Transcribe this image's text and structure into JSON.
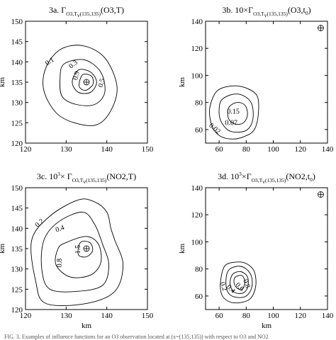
{
  "caption_fragment": "FIG. 3. Examples of influence functions for an O3 observation located at (x=(135,135)) with respect to O3 and NO2",
  "chart_data": [
    {
      "type": "contour",
      "title": {
        "pre": "3a. Γ",
        "sub": "O3,T",
        "sub2": "v",
        "sub3": "(135,135)",
        "post": "(O3,T)"
      },
      "xlabel": "",
      "ylabel": "km",
      "xlim": [
        120,
        150
      ],
      "ylim": [
        120,
        150
      ],
      "xticks": [
        120,
        130,
        140,
        150
      ],
      "yticks": [
        120,
        125,
        130,
        135,
        140,
        145,
        150
      ],
      "marker": [
        135,
        135
      ],
      "contours": [
        {
          "level": "0.1",
          "points": [
            [
              128.5,
              143
            ],
            [
              134,
              144
            ],
            [
              139.5,
              141
            ],
            [
              142.5,
              134
            ],
            [
              141,
              128
            ],
            [
              137.5,
              124.5
            ],
            [
              132,
              125
            ],
            [
              127.5,
              127.5
            ],
            [
              124.5,
              133
            ],
            [
              125,
              138.5
            ]
          ]
        },
        {
          "level": "0.3",
          "points": [
            [
              129.5,
              139.5
            ],
            [
              134.5,
              140.5
            ],
            [
              138.5,
              137.5
            ],
            [
              139.5,
              132.5
            ],
            [
              137,
              129.5
            ],
            [
              132.5,
              129.5
            ],
            [
              129,
              131.5
            ],
            [
              128.5,
              136
            ]
          ]
        },
        {
          "level": "0.5",
          "points": [
            [
              133,
              138
            ],
            [
              136,
              137.5
            ],
            [
              137.5,
              135
            ],
            [
              136,
              132.5
            ],
            [
              133,
              132.5
            ],
            [
              131.5,
              135
            ]
          ]
        },
        {
          "level": "0.9",
          "points": [
            [
              134,
              136.8
            ],
            [
              136.2,
              136.5
            ],
            [
              136.6,
              134.5
            ],
            [
              134.8,
              133
            ],
            [
              133.2,
              134
            ]
          ]
        }
      ],
      "labels": [
        {
          "text": "0.1",
          "x": 126,
          "y": 140,
          "rot": -35
        },
        {
          "text": "0.3",
          "x": 131.8,
          "y": 139.3,
          "rot": -40
        },
        {
          "text": "0.9",
          "x": 132.6,
          "y": 136.6,
          "rot": -75
        },
        {
          "text": "0.5",
          "x": 138.8,
          "y": 134.8,
          "rot": -75
        }
      ]
    },
    {
      "type": "contour",
      "title": {
        "pre": "3b. 10×Γ",
        "sub": "O3,T",
        "sub2": "v",
        "sub3": "(135,135)",
        "post": "(O3,t",
        "post_sub": "0",
        "post_end": ")"
      },
      "xlabel": "",
      "ylabel": "km",
      "xlim": [
        50,
        140
      ],
      "ylim": [
        50,
        140
      ],
      "xticks": [
        60,
        80,
        100,
        120,
        140
      ],
      "yticks": [
        60,
        80,
        100,
        120,
        140
      ],
      "marker": [
        135,
        135
      ],
      "contours": [
        {
          "level": "0.02",
          "points": [
            [
              58,
              88
            ],
            [
              68,
              92
            ],
            [
              79,
              91
            ],
            [
              88,
              85
            ],
            [
              89,
              72
            ],
            [
              86,
              60
            ],
            [
              79,
              55
            ],
            [
              70,
              53
            ],
            [
              61,
              55
            ],
            [
              55,
              62
            ],
            [
              53,
              75
            ]
          ]
        },
        {
          "level": "0.07",
          "points": [
            [
              62,
              82
            ],
            [
              70,
              86
            ],
            [
              78,
              85
            ],
            [
              84,
              79
            ],
            [
              85,
              68
            ],
            [
              81,
              60
            ],
            [
              73,
              58
            ],
            [
              66,
              60
            ],
            [
              61,
              67
            ],
            [
              60,
              75
            ]
          ]
        },
        {
          "level": "0.15",
          "points": [
            [
              67,
              76
            ],
            [
              73,
              80
            ],
            [
              79,
              78
            ],
            [
              81,
              71
            ],
            [
              78,
              65
            ],
            [
              72,
              64
            ],
            [
              67,
              68
            ]
          ]
        }
      ],
      "labels": [
        {
          "text": "0.15",
          "x": 70.5,
          "y": 73,
          "rot": 0
        },
        {
          "text": "0.07",
          "x": 69,
          "y": 64.5,
          "rot": 0
        },
        {
          "text": "0.02",
          "x": 56.5,
          "y": 60.5,
          "rot": 40
        }
      ]
    },
    {
      "type": "contour",
      "title": {
        "pre": "3c. 10",
        "sup": "3",
        "mid": "× Γ",
        "sub": "O3,T",
        "sub2": "v",
        "sub3": "(135,135)",
        "post": "(NO2,T)"
      },
      "xlabel": "km",
      "ylabel": "km",
      "xlim": [
        120,
        150
      ],
      "ylim": [
        120,
        150
      ],
      "xticks": [
        120,
        130,
        140,
        150
      ],
      "yticks": [
        120,
        125,
        130,
        135,
        140,
        145,
        150
      ],
      "marker": [
        135,
        135
      ],
      "contours": [
        {
          "level": "0.2",
          "points": [
            [
              126,
              143
            ],
            [
              133,
              147
            ],
            [
              137,
              146.5
            ],
            [
              140,
              144
            ],
            [
              141,
              140
            ],
            [
              142,
              137
            ],
            [
              144,
              131
            ],
            [
              142,
              124.5
            ],
            [
              135,
              121.5
            ],
            [
              125,
              121.5
            ],
            [
              122.5,
              127
            ],
            [
              121.5,
              137
            ]
          ]
        },
        {
          "level": "0.4",
          "points": [
            [
              128,
              141.5
            ],
            [
              134,
              144
            ],
            [
              137,
              141
            ],
            [
              139,
              136
            ],
            [
              140.5,
              131
            ],
            [
              139,
              126
            ],
            [
              133,
              124.5
            ],
            [
              126,
              125
            ],
            [
              124,
              130
            ],
            [
              124.5,
              137
            ]
          ]
        },
        {
          "level": "0.8",
          "points": [
            [
              130,
              136.5
            ],
            [
              135,
              138
            ],
            [
              138,
              136
            ],
            [
              138.5,
              131.5
            ],
            [
              136,
              128.5
            ],
            [
              131,
              128
            ],
            [
              127.5,
              131
            ],
            [
              128,
              135
            ]
          ]
        },
        {
          "level": "1.5",
          "points": [
            [
              133.5,
              136.5
            ],
            [
              135.8,
              136.5
            ],
            [
              136.5,
              134.5
            ],
            [
              135,
              133
            ],
            [
              133,
              133.5
            ]
          ]
        }
      ],
      "labels": [
        {
          "text": "0.2",
          "x": 123.5,
          "y": 141.2,
          "rot": -40
        },
        {
          "text": "0.4",
          "x": 128.5,
          "y": 139.8,
          "rot": -20
        },
        {
          "text": "1.5",
          "x": 133,
          "y": 134.8,
          "rot": -90
        },
        {
          "text": "0.8",
          "x": 128.5,
          "y": 131.5,
          "rot": -90
        }
      ]
    },
    {
      "type": "contour",
      "title": {
        "pre": "3d. 10",
        "sup": "3",
        "mid": "×Γ",
        "sub": "O3,T",
        "sub2": "v",
        "sub3": "(135,135)",
        "post": "(NO2,t",
        "post_sub": "0",
        "post_end": ")"
      },
      "xlabel": "km",
      "ylabel": "km",
      "xlim": [
        50,
        140
      ],
      "ylim": [
        50,
        140
      ],
      "xticks": [
        60,
        80,
        100,
        120,
        140
      ],
      "yticks": [
        60,
        80,
        100,
        120,
        140
      ],
      "marker": [
        135,
        135
      ],
      "contours": [
        {
          "level": "0.2",
          "points": [
            [
              64,
              82
            ],
            [
              72,
              85
            ],
            [
              80,
              84
            ],
            [
              86,
              78
            ],
            [
              87,
              67
            ],
            [
              83,
              58
            ],
            [
              75,
              55
            ],
            [
              67,
              56
            ],
            [
              62,
              61
            ],
            [
              61,
              70
            ]
          ]
        },
        {
          "level": "0.4",
          "points": [
            [
              67,
              79
            ],
            [
              74,
              82
            ],
            [
              80,
              80
            ],
            [
              84,
              74
            ],
            [
              84,
              66
            ],
            [
              80,
              60
            ],
            [
              73,
              59
            ],
            [
              67,
              62
            ],
            [
              65,
              70
            ]
          ]
        },
        {
          "level": "0.6",
          "points": [
            [
              70,
              76
            ],
            [
              76,
              78
            ],
            [
              81,
              74
            ],
            [
              81,
              66
            ],
            [
              77,
              62
            ],
            [
              71,
              63
            ],
            [
              68,
              69
            ]
          ]
        },
        {
          "level": "0.8",
          "points": [
            [
              72,
              74
            ],
            [
              77,
              75
            ],
            [
              79,
              70
            ],
            [
              77,
              65
            ],
            [
              73,
              66
            ],
            [
              71,
              70
            ]
          ]
        }
      ],
      "labels": [
        {
          "text": "0.2",
          "x": 63,
          "y": 67,
          "rot": 70
        },
        {
          "text": "0.4",
          "x": 68.5,
          "y": 65,
          "rot": 45
        },
        {
          "text": "0.6",
          "x": 75,
          "y": 66.5,
          "rot": 45
        },
        {
          "text": "0.8",
          "x": 80,
          "y": 69,
          "rot": 70
        }
      ]
    }
  ]
}
